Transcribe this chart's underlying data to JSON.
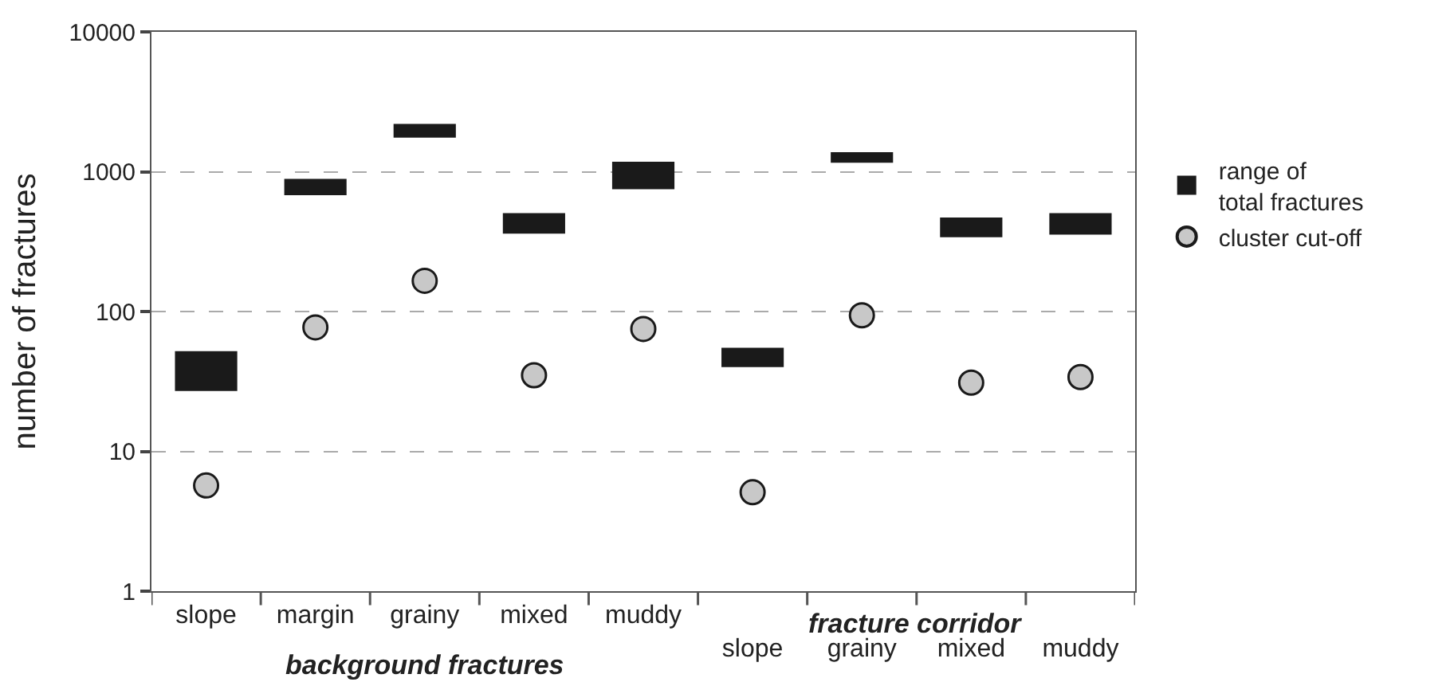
{
  "chart_data": {
    "type": "bar",
    "ylabel": "number of fractures",
    "categories": [
      "slope",
      "margin",
      "grainy",
      "mixed",
      "muddy",
      "slope",
      "grainy",
      "mixed",
      "muddy"
    ],
    "series": [
      {
        "name": "range of\ntotal fractures",
        "color": "#1a1a1a",
        "base": [
          27,
          680,
          1750,
          360,
          750,
          40,
          1160,
          340,
          355
        ],
        "values": [
          25,
          210,
          450,
          145,
          430,
          15,
          220,
          130,
          150
        ]
      },
      {
        "name": "cluster cut-off",
        "type": "scatter",
        "color": "#c8c8c8",
        "marker": "circle",
        "values": [
          5.7,
          77,
          166,
          35,
          75,
          5.1,
          94,
          31,
          34
        ]
      }
    ],
    "ylim": [
      1,
      10000
    ],
    "yticks": [
      1,
      10,
      100,
      1000,
      10000
    ],
    "log": "y",
    "grid": "y",
    "legend": "right",
    "annotations": [
      "background fractures",
      "fracture corridor"
    ]
  }
}
